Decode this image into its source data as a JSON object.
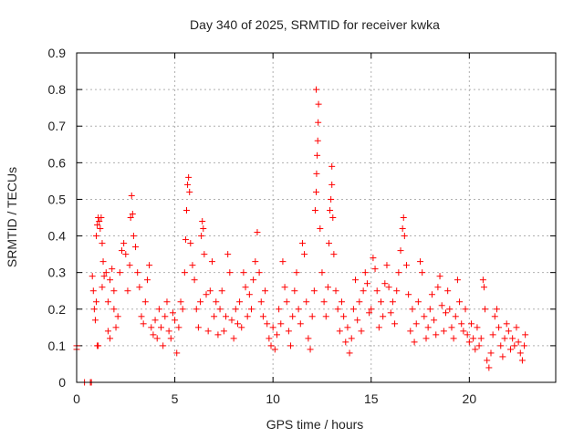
{
  "chart_data": {
    "type": "scatter",
    "title": "Day 340 of 2025, SRMTID for receiver kwka",
    "xlabel": "GPS time / hours",
    "ylabel": "SRMTID / TECUs",
    "xlim": [
      0,
      24.4
    ],
    "ylim": [
      0,
      0.9
    ],
    "xticks": [
      0,
      5,
      10,
      15,
      20
    ],
    "yticks": [
      0,
      0.1,
      0.2,
      0.3,
      0.4,
      0.5,
      0.6,
      0.7,
      0.8,
      0.9
    ],
    "grid": true,
    "marker": "+",
    "color": "#ff0000",
    "series": [
      {
        "name": "SRMTID",
        "points": [
          [
            0.0,
            0.1
          ],
          [
            0.0,
            0.09
          ],
          [
            0.4,
            0.0
          ],
          [
            0.7,
            0.0
          ],
          [
            0.75,
            0.0
          ],
          [
            0.8,
            0.29
          ],
          [
            0.85,
            0.25
          ],
          [
            0.9,
            0.2
          ],
          [
            0.95,
            0.17
          ],
          [
            1.0,
            0.22
          ],
          [
            1.05,
            0.1
          ],
          [
            1.1,
            0.1
          ],
          [
            1.0,
            0.4
          ],
          [
            1.05,
            0.43
          ],
          [
            1.1,
            0.45
          ],
          [
            1.15,
            0.44
          ],
          [
            1.2,
            0.42
          ],
          [
            1.25,
            0.45
          ],
          [
            1.3,
            0.38
          ],
          [
            1.35,
            0.33
          ],
          [
            1.3,
            0.26
          ],
          [
            1.4,
            0.29
          ],
          [
            1.5,
            0.3
          ],
          [
            1.6,
            0.22
          ],
          [
            1.7,
            0.28
          ],
          [
            1.8,
            0.31
          ],
          [
            1.9,
            0.25
          ],
          [
            2.0,
            0.15
          ],
          [
            1.6,
            0.14
          ],
          [
            1.7,
            0.12
          ],
          [
            1.9,
            0.2
          ],
          [
            2.1,
            0.18
          ],
          [
            2.2,
            0.3
          ],
          [
            2.3,
            0.36
          ],
          [
            2.4,
            0.38
          ],
          [
            2.5,
            0.35
          ],
          [
            2.6,
            0.25
          ],
          [
            2.7,
            0.32
          ],
          [
            2.75,
            0.45
          ],
          [
            2.8,
            0.51
          ],
          [
            2.85,
            0.46
          ],
          [
            2.9,
            0.4
          ],
          [
            3.0,
            0.37
          ],
          [
            3.1,
            0.3
          ],
          [
            3.2,
            0.26
          ],
          [
            3.3,
            0.18
          ],
          [
            3.4,
            0.16
          ],
          [
            3.5,
            0.22
          ],
          [
            3.6,
            0.28
          ],
          [
            3.7,
            0.32
          ],
          [
            3.8,
            0.15
          ],
          [
            3.9,
            0.13
          ],
          [
            4.0,
            0.17
          ],
          [
            4.1,
            0.12
          ],
          [
            4.2,
            0.2
          ],
          [
            4.3,
            0.15
          ],
          [
            4.4,
            0.1
          ],
          [
            4.5,
            0.18
          ],
          [
            4.6,
            0.22
          ],
          [
            4.7,
            0.14
          ],
          [
            4.8,
            0.12
          ],
          [
            4.9,
            0.19
          ],
          [
            5.0,
            0.17
          ],
          [
            5.1,
            0.08
          ],
          [
            5.2,
            0.15
          ],
          [
            5.3,
            0.22
          ],
          [
            5.4,
            0.2
          ],
          [
            5.5,
            0.3
          ],
          [
            5.55,
            0.39
          ],
          [
            5.6,
            0.47
          ],
          [
            5.65,
            0.54
          ],
          [
            5.7,
            0.56
          ],
          [
            5.75,
            0.52
          ],
          [
            5.8,
            0.38
          ],
          [
            5.9,
            0.32
          ],
          [
            6.0,
            0.28
          ],
          [
            6.1,
            0.2
          ],
          [
            6.2,
            0.15
          ],
          [
            6.3,
            0.22
          ],
          [
            6.35,
            0.4
          ],
          [
            6.4,
            0.44
          ],
          [
            6.45,
            0.42
          ],
          [
            6.5,
            0.35
          ],
          [
            6.6,
            0.24
          ],
          [
            6.7,
            0.14
          ],
          [
            6.8,
            0.25
          ],
          [
            6.9,
            0.33
          ],
          [
            7.0,
            0.18
          ],
          [
            7.1,
            0.22
          ],
          [
            7.2,
            0.13
          ],
          [
            7.3,
            0.2
          ],
          [
            7.4,
            0.25
          ],
          [
            7.5,
            0.14
          ],
          [
            7.6,
            0.18
          ],
          [
            7.7,
            0.35
          ],
          [
            7.8,
            0.3
          ],
          [
            7.9,
            0.17
          ],
          [
            8.0,
            0.12
          ],
          [
            8.1,
            0.2
          ],
          [
            8.2,
            0.16
          ],
          [
            8.3,
            0.22
          ],
          [
            8.4,
            0.15
          ],
          [
            8.5,
            0.3
          ],
          [
            8.6,
            0.26
          ],
          [
            8.7,
            0.18
          ],
          [
            8.8,
            0.24
          ],
          [
            8.9,
            0.2
          ],
          [
            9.0,
            0.28
          ],
          [
            9.1,
            0.33
          ],
          [
            9.2,
            0.41
          ],
          [
            9.3,
            0.3
          ],
          [
            9.4,
            0.22
          ],
          [
            9.5,
            0.18
          ],
          [
            9.6,
            0.25
          ],
          [
            9.7,
            0.16
          ],
          [
            9.8,
            0.12
          ],
          [
            9.9,
            0.1
          ],
          [
            10.0,
            0.15
          ],
          [
            10.1,
            0.09
          ],
          [
            10.2,
            0.13
          ],
          [
            10.3,
            0.2
          ],
          [
            10.4,
            0.16
          ],
          [
            10.5,
            0.33
          ],
          [
            10.6,
            0.26
          ],
          [
            10.7,
            0.22
          ],
          [
            10.8,
            0.14
          ],
          [
            10.9,
            0.1
          ],
          [
            11.0,
            0.18
          ],
          [
            11.1,
            0.25
          ],
          [
            11.2,
            0.3
          ],
          [
            11.3,
            0.2
          ],
          [
            11.4,
            0.16
          ],
          [
            11.5,
            0.38
          ],
          [
            11.6,
            0.35
          ],
          [
            11.7,
            0.22
          ],
          [
            11.8,
            0.12
          ],
          [
            11.9,
            0.09
          ],
          [
            12.0,
            0.18
          ],
          [
            12.1,
            0.25
          ],
          [
            12.15,
            0.47
          ],
          [
            12.2,
            0.52
          ],
          [
            12.22,
            0.57
          ],
          [
            12.25,
            0.62
          ],
          [
            12.28,
            0.66
          ],
          [
            12.3,
            0.71
          ],
          [
            12.32,
            0.76
          ],
          [
            12.2,
            0.8
          ],
          [
            12.4,
            0.42
          ],
          [
            12.5,
            0.3
          ],
          [
            12.6,
            0.22
          ],
          [
            12.7,
            0.18
          ],
          [
            12.8,
            0.26
          ],
          [
            12.85,
            0.38
          ],
          [
            12.9,
            0.47
          ],
          [
            12.95,
            0.5
          ],
          [
            13.0,
            0.54
          ],
          [
            13.0,
            0.59
          ],
          [
            13.05,
            0.45
          ],
          [
            13.1,
            0.35
          ],
          [
            13.2,
            0.25
          ],
          [
            13.3,
            0.2
          ],
          [
            13.4,
            0.14
          ],
          [
            13.5,
            0.22
          ],
          [
            13.6,
            0.18
          ],
          [
            13.7,
            0.11
          ],
          [
            13.8,
            0.15
          ],
          [
            13.9,
            0.08
          ],
          [
            14.0,
            0.12
          ],
          [
            14.1,
            0.2
          ],
          [
            14.2,
            0.28
          ],
          [
            14.3,
            0.17
          ],
          [
            14.4,
            0.22
          ],
          [
            14.5,
            0.14
          ],
          [
            14.6,
            0.25
          ],
          [
            14.7,
            0.3
          ],
          [
            14.8,
            0.27
          ],
          [
            14.9,
            0.19
          ],
          [
            15.0,
            0.2
          ],
          [
            15.1,
            0.34
          ],
          [
            15.2,
            0.31
          ],
          [
            15.3,
            0.25
          ],
          [
            15.4,
            0.15
          ],
          [
            15.5,
            0.22
          ],
          [
            15.6,
            0.18
          ],
          [
            15.7,
            0.27
          ],
          [
            15.8,
            0.32
          ],
          [
            15.9,
            0.26
          ],
          [
            16.0,
            0.19
          ],
          [
            16.1,
            0.22
          ],
          [
            16.2,
            0.16
          ],
          [
            16.3,
            0.25
          ],
          [
            16.4,
            0.3
          ],
          [
            16.5,
            0.36
          ],
          [
            16.6,
            0.42
          ],
          [
            16.65,
            0.45
          ],
          [
            16.7,
            0.4
          ],
          [
            16.8,
            0.32
          ],
          [
            16.9,
            0.24
          ],
          [
            17.0,
            0.14
          ],
          [
            17.1,
            0.2
          ],
          [
            17.2,
            0.11
          ],
          [
            17.3,
            0.16
          ],
          [
            17.4,
            0.22
          ],
          [
            17.5,
            0.33
          ],
          [
            17.6,
            0.3
          ],
          [
            17.7,
            0.18
          ],
          [
            17.8,
            0.12
          ],
          [
            17.9,
            0.15
          ],
          [
            18.0,
            0.2
          ],
          [
            18.1,
            0.24
          ],
          [
            18.2,
            0.17
          ],
          [
            18.3,
            0.13
          ],
          [
            18.4,
            0.26
          ],
          [
            18.5,
            0.29
          ],
          [
            18.6,
            0.21
          ],
          [
            18.7,
            0.14
          ],
          [
            18.8,
            0.19
          ],
          [
            18.9,
            0.25
          ],
          [
            19.0,
            0.2
          ],
          [
            19.1,
            0.15
          ],
          [
            19.2,
            0.12
          ],
          [
            19.3,
            0.18
          ],
          [
            19.4,
            0.28
          ],
          [
            19.5,
            0.22
          ],
          [
            19.6,
            0.16
          ],
          [
            19.7,
            0.14
          ],
          [
            19.8,
            0.2
          ],
          [
            19.9,
            0.13
          ],
          [
            20.0,
            0.11
          ],
          [
            20.1,
            0.16
          ],
          [
            20.2,
            0.12
          ],
          [
            20.3,
            0.09
          ],
          [
            20.4,
            0.15
          ],
          [
            20.5,
            0.1
          ],
          [
            20.6,
            0.12
          ],
          [
            20.7,
            0.28
          ],
          [
            20.75,
            0.26
          ],
          [
            20.8,
            0.2
          ],
          [
            20.9,
            0.06
          ],
          [
            21.0,
            0.04
          ],
          [
            21.1,
            0.08
          ],
          [
            21.2,
            0.13
          ],
          [
            21.3,
            0.18
          ],
          [
            21.4,
            0.2
          ],
          [
            21.5,
            0.15
          ],
          [
            21.6,
            0.1
          ],
          [
            21.7,
            0.07
          ],
          [
            21.8,
            0.12
          ],
          [
            21.9,
            0.16
          ],
          [
            22.0,
            0.14
          ],
          [
            22.1,
            0.09
          ],
          [
            22.2,
            0.12
          ],
          [
            22.3,
            0.1
          ],
          [
            22.4,
            0.15
          ],
          [
            22.5,
            0.11
          ],
          [
            22.6,
            0.08
          ],
          [
            22.7,
            0.06
          ],
          [
            22.8,
            0.1
          ],
          [
            22.85,
            0.13
          ]
        ]
      }
    ]
  }
}
